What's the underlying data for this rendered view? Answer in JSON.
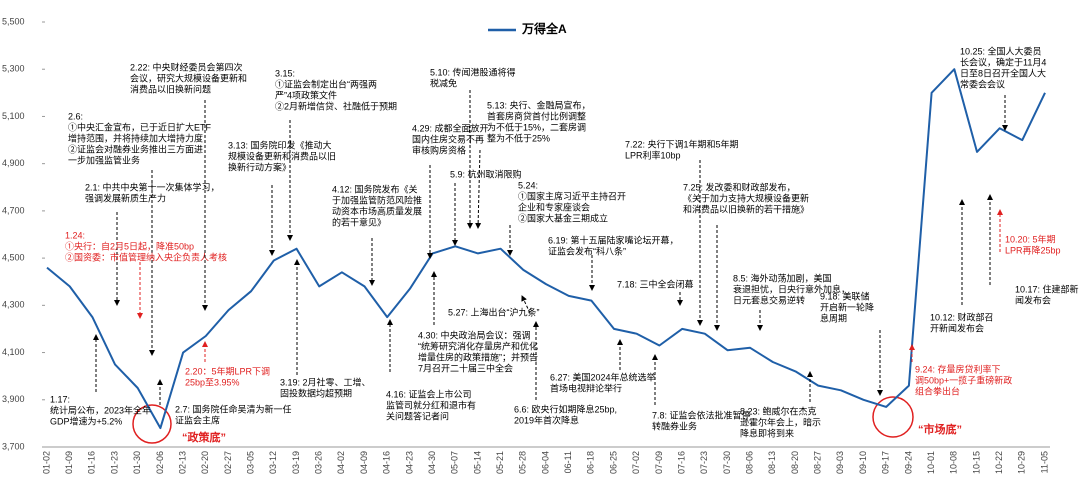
{
  "chart_data": {
    "type": "line",
    "legend": "万得全A",
    "categories": [
      "01-02",
      "01-09",
      "01-16",
      "01-23",
      "01-30",
      "02-06",
      "02-13",
      "02-20",
      "02-27",
      "03-05",
      "03-12",
      "03-19",
      "03-26",
      "04-02",
      "04-09",
      "04-16",
      "04-23",
      "04-30",
      "05-07",
      "05-14",
      "05-21",
      "05-28",
      "06-04",
      "06-11",
      "06-18",
      "06-25",
      "07-02",
      "07-09",
      "07-16",
      "07-23",
      "07-30",
      "08-06",
      "08-13",
      "08-20",
      "08-27",
      "09-03",
      "09-10",
      "09-17",
      "09-24",
      "10-01",
      "10-08",
      "10-15",
      "10-22",
      "10-29",
      "11-05"
    ],
    "values": [
      4460,
      4380,
      4250,
      4050,
      3950,
      3780,
      4100,
      4170,
      4280,
      4360,
      4490,
      4540,
      4380,
      4440,
      4380,
      4250,
      4370,
      4520,
      4550,
      4520,
      4540,
      4450,
      4390,
      4340,
      4320,
      4200,
      4180,
      4130,
      4200,
      4180,
      4110,
      4120,
      4060,
      4020,
      3960,
      3940,
      3900,
      3870,
      3960,
      5200,
      5300,
      4950,
      5050,
      5000,
      5200
    ],
    "color": "#1f5fa8",
    "ylim": [
      3700,
      5500
    ],
    "yticks": [
      {
        "value": 3700,
        "label": "3,700"
      },
      {
        "value": 3900,
        "label": "3,900"
      },
      {
        "value": 4100,
        "label": "4,100"
      },
      {
        "value": 4300,
        "label": "4,300"
      },
      {
        "value": 4500,
        "label": "4,500"
      },
      {
        "value": 4700,
        "label": "4,700"
      },
      {
        "value": 4900,
        "label": "4,900"
      },
      {
        "value": 5100,
        "label": "5,100"
      },
      {
        "value": 5300,
        "label": "5,300"
      },
      {
        "value": 5500,
        "label": "5,500"
      }
    ],
    "annotations": [
      {
        "color": "#000000",
        "lines": [
          "1.17:",
          "统计局公布，2023年全年",
          "GDP增速为+5.2%"
        ]
      },
      {
        "color": "#000000",
        "lines": [
          "2.1:  中共中央第十一次集体学习，",
          "强调发展新质生产力"
        ]
      },
      {
        "color": "#000000",
        "lines": [
          "2.6:",
          "①中央汇金宣布，已于近日扩大ETF",
          "增持范围，并将持续加大增持力度",
          "②证监会对融券业务推出三方面进",
          "一步加强监管业务"
        ]
      },
      {
        "color": "#e02020",
        "lines": [
          "1.24:",
          "①央行：自2月5日起，降准50bp",
          "②国资委：市值管理纳入央企负责人考核"
        ]
      },
      {
        "color": "#000000",
        "lines": [
          "2.22: 中央财经委员会第四次",
          "会议，研究大规模设备更新和",
          "消费品以旧换新问题"
        ]
      },
      {
        "color": "#e02020",
        "lines": [
          "2.20：5年期LPR下调",
          "25bp至3.95%"
        ]
      },
      {
        "color": "#000000",
        "lines": [
          "2.7: 国务院任命吴清为新一任",
          "证监会主席"
        ]
      },
      {
        "color": "#000000",
        "lines": [
          "3.13: 国务院印发《推动大",
          "规模设备更新和消费品以旧",
          "换新行动方案》"
        ]
      },
      {
        "color": "#000000",
        "lines": [
          "3.15:",
          "①证监会制定出台“两强两",
          "严”4项政策文件",
          "②2月新增信贷、社融低于预期"
        ]
      },
      {
        "color": "#000000",
        "lines": [
          "3.19: 2月社零、工增、",
          "固投数据均超预期"
        ]
      },
      {
        "color": "#000000",
        "lines": [
          "4.12: 国务院发布《关",
          "于加强监管防范风险推",
          "动资本市场高质量发展",
          "的若干意见》"
        ]
      },
      {
        "color": "#000000",
        "lines": [
          "4.16: 证监会上市公司",
          "监管司就分红和退市有",
          "关问题答记者问"
        ]
      },
      {
        "color": "#000000",
        "lines": [
          "4.29: 成都全面放开",
          "国内住房交易不再",
          "审核购房资格"
        ]
      },
      {
        "color": "#000000",
        "lines": [
          "5.10: 传闻港股通将得",
          "税减免"
        ]
      },
      {
        "color": "#000000",
        "lines": [
          "5.13: 央行、金融局宣布，",
          "首套房商贷首付比例调整",
          "为不低于15%，二套房调",
          "整为不低于25%"
        ]
      },
      {
        "color": "#000000",
        "lines": [
          "5.9: 杭州取消限购"
        ]
      },
      {
        "color": "#000000",
        "lines": [
          "5.24:",
          "①国家主席习近平主持召开",
          "企业和专家座谈会",
          "②国家大基金三期成立"
        ]
      },
      {
        "color": "#000000",
        "lines": [
          "6.19: 第十五届陆家嘴论坛开幕，",
          "证监会发布“科八条”"
        ]
      },
      {
        "color": "#000000",
        "lines": [
          "5.27: 上海出台“沪九条”"
        ]
      },
      {
        "color": "#000000",
        "lines": [
          "4.30: 中央政治局会议：强调",
          "“统筹研究消化存量房产和优化",
          "增量住房的政策措施”；并预告",
          "7月召开二十届三中全会"
        ]
      },
      {
        "color": "#000000",
        "lines": [
          "6.27: 美国2024年总统选举",
          "首场电视辩论举行"
        ]
      },
      {
        "color": "#000000",
        "lines": [
          "6.6: 欧央行如期降息25bp,",
          "2019年首次降息"
        ]
      },
      {
        "color": "#000000",
        "lines": [
          "7.18: 三中全会闭幕"
        ]
      },
      {
        "color": "#000000",
        "lines": [
          "7.22: 央行下调1年期和5年期",
          "LPR利率10bp"
        ]
      },
      {
        "color": "#000000",
        "lines": [
          "7.25: 发改委和财政部发布，",
          "《关于加力支持大规模设备更新",
          "和消费品以旧换新的若干措施》"
        ]
      },
      {
        "color": "#000000",
        "lines": [
          "7.8: 证监会依法批准暂停",
          "转融券业务"
        ]
      },
      {
        "color": "#000000",
        "lines": [
          "8.5: 海外动荡加剧，美国",
          "衰退担忧，日央行意外加息，",
          "日元套息交易逆转"
        ]
      },
      {
        "color": "#000000",
        "lines": [
          "8.23: 鲍威尔在杰克",
          "逊霍尔年会上，暗示",
          "降息即将到来"
        ]
      },
      {
        "color": "#000000",
        "lines": [
          "9.18: 美联储",
          "开启新一轮降",
          "息周期"
        ]
      },
      {
        "color": "#e02020",
        "lines": [
          "9.24: 存量房贷利率下",
          "调50bp+一揽子重磅新政",
          "组合拳出台"
        ]
      },
      {
        "color": "#000000",
        "lines": [
          "10.12: 财政部召",
          "开新闻发布会"
        ]
      },
      {
        "color": "#000000",
        "lines": [
          "10.17: 住建部新",
          "闻发布会"
        ]
      },
      {
        "color": "#e02020",
        "lines": [
          "10.20: 5年期",
          "LPR再降25bp"
        ]
      },
      {
        "color": "#000000",
        "lines": [
          "10.25: 全国人大委员",
          "长会议，确定于11月4",
          "日至8日召开全国人大",
          "常委会会议"
        ]
      }
    ],
    "bottom_labels": [
      "“政策底”",
      "“市场底”"
    ]
  }
}
